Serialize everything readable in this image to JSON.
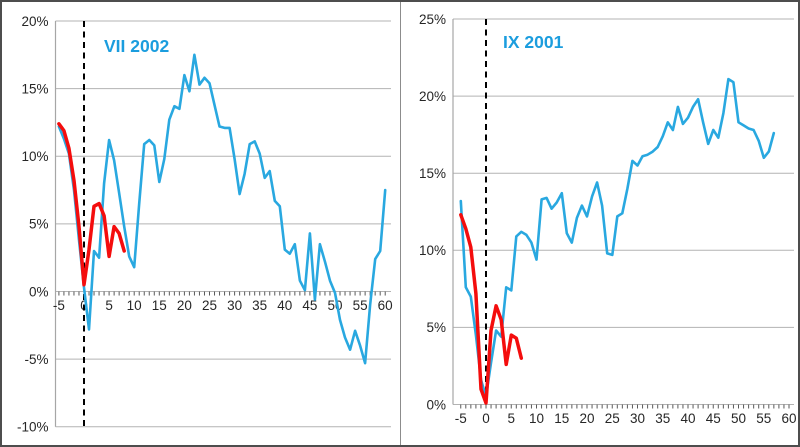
{
  "window": {
    "background_color": "#ffffff",
    "border_color": "#4d4d4d",
    "divider_color": "#8c8c8c"
  },
  "styles": {
    "gridline_color": "#b3b3b3",
    "axis_color": "#a6a6a6",
    "tick_mark_color": "#595959",
    "label_color": "#262626",
    "event_line_color": "#000000"
  },
  "chart_data": [
    {
      "type": "line",
      "title": "VII 2002",
      "title_color": "#1b9dde",
      "xlim": [
        -5,
        60
      ],
      "ylim": [
        -10,
        20
      ],
      "grid": true,
      "legend": "none",
      "vline_x": 0,
      "x_tick_labels": [
        "-5",
        "0",
        "5",
        "10",
        "15",
        "20",
        "25",
        "30",
        "35",
        "40",
        "45",
        "50",
        "55",
        "60"
      ],
      "y_tick_labels": [
        "20%",
        "15%",
        "10%",
        "5%",
        "0%",
        "-5%",
        "-10%"
      ],
      "series": [
        {
          "name": "blue-series",
          "color": "#29a8e0",
          "x_start": -5,
          "values": [
            12.2,
            11.3,
            10.2,
            7.5,
            3.8,
            0.3,
            -2.8,
            3.0,
            2.5,
            8.0,
            11.2,
            9.7,
            7.3,
            4.8,
            2.6,
            1.8,
            6.5,
            10.9,
            11.2,
            10.8,
            8.1,
            9.8,
            12.7,
            13.7,
            13.5,
            16.0,
            14.8,
            17.5,
            15.3,
            15.8,
            15.4,
            13.8,
            12.2,
            12.1,
            12.1,
            9.8,
            7.2,
            8.7,
            10.9,
            11.1,
            10.2,
            8.4,
            8.9,
            6.7,
            6.3,
            3.1,
            2.8,
            3.5,
            0.8,
            0.1,
            4.3,
            -0.6,
            3.5,
            2.2,
            0.8,
            -0.1,
            -2.1,
            -3.4,
            -4.3,
            -2.9,
            -4.0,
            -5.3,
            -1.0,
            2.4,
            3.0,
            7.5
          ]
        },
        {
          "name": "red-series",
          "color": "#f40d0d",
          "x_start": -5,
          "values": [
            12.4,
            11.9,
            10.6,
            8.2,
            4.8,
            0.5,
            3.1,
            6.3,
            6.5,
            5.6,
            2.6,
            4.8,
            4.3,
            3.0
          ]
        }
      ]
    },
    {
      "type": "line",
      "title": "IX 2001",
      "title_color": "#1b9dde",
      "xlim": [
        -5,
        60
      ],
      "ylim": [
        0,
        25
      ],
      "grid": true,
      "legend": "none",
      "vline_x": 0,
      "x_tick_labels": [
        "-5",
        "0",
        "5",
        "10",
        "15",
        "20",
        "25",
        "30",
        "35",
        "40",
        "45",
        "50",
        "55",
        "60"
      ],
      "y_tick_labels": [
        "25%",
        "20%",
        "15%",
        "10%",
        "5%",
        "0%"
      ],
      "series": [
        {
          "name": "blue-series",
          "color": "#29a8e0",
          "x_start": -5,
          "values": [
            13.2,
            7.6,
            7.0,
            4.5,
            1.6,
            0.5,
            2.7,
            4.8,
            4.4,
            7.6,
            7.4,
            10.9,
            11.2,
            11.0,
            10.5,
            9.4,
            13.3,
            13.4,
            12.7,
            13.1,
            13.7,
            11.1,
            10.5,
            12.1,
            12.9,
            12.2,
            13.5,
            14.4,
            12.9,
            9.8,
            9.7,
            12.2,
            12.4,
            14.0,
            15.8,
            15.5,
            16.1,
            16.2,
            16.4,
            16.7,
            17.4,
            18.3,
            17.8,
            19.3,
            18.2,
            18.6,
            19.3,
            19.8,
            18.3,
            16.9,
            17.8,
            17.3,
            18.9,
            21.1,
            20.9,
            18.3,
            18.1,
            17.9,
            17.8,
            17.1,
            16.0,
            16.4,
            17.6
          ]
        },
        {
          "name": "red-series",
          "color": "#f40d0d",
          "x_start": -5,
          "values": [
            12.3,
            11.4,
            10.2,
            7.2,
            1.0,
            0.1,
            4.8,
            6.4,
            5.5,
            2.6,
            4.5,
            4.3,
            3.0
          ]
        }
      ]
    }
  ]
}
